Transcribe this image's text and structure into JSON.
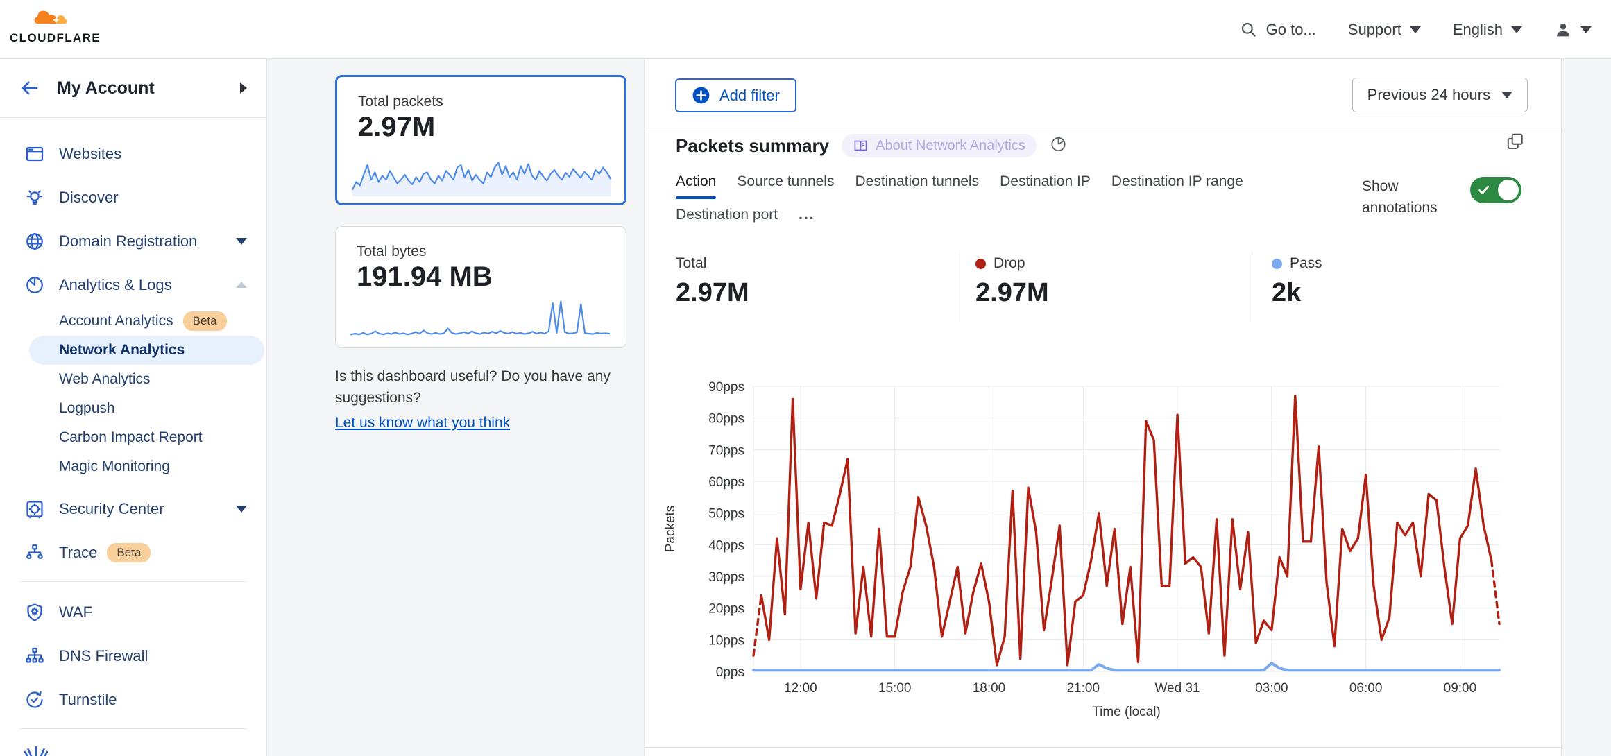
{
  "header": {
    "logo_text": "CLOUDFLARE",
    "goto_label": "Go to...",
    "support_label": "Support",
    "language_label": "English"
  },
  "sidebar": {
    "account_label": "My Account",
    "beta_label": "Beta",
    "items": [
      {
        "label": "Websites"
      },
      {
        "label": "Discover"
      },
      {
        "label": "Domain Registration"
      },
      {
        "label": "Analytics & Logs"
      },
      {
        "label": "Account Analytics"
      },
      {
        "label": "Network Analytics"
      },
      {
        "label": "Web Analytics"
      },
      {
        "label": "Logpush"
      },
      {
        "label": "Carbon Impact Report"
      },
      {
        "label": "Magic Monitoring"
      },
      {
        "label": "Security Center"
      },
      {
        "label": "Trace"
      },
      {
        "label": "WAF"
      },
      {
        "label": "DNS Firewall"
      },
      {
        "label": "Turnstile"
      }
    ]
  },
  "overview": {
    "packets_card": {
      "title": "Total packets",
      "value": "2.97M",
      "sparkline": [
        10,
        25,
        18,
        40,
        60,
        30,
        45,
        25,
        38,
        30,
        48,
        35,
        22,
        30,
        40,
        28,
        20,
        35,
        25,
        42,
        45,
        30,
        22,
        38,
        28,
        48,
        40,
        30,
        55,
        60,
        35,
        50,
        28,
        40,
        30,
        22,
        45,
        35,
        55,
        65,
        40,
        58,
        35,
        45,
        30,
        58,
        42,
        62,
        38,
        30,
        48,
        36,
        28,
        42,
        50,
        38,
        30,
        44,
        36,
        52,
        42,
        34,
        46,
        38,
        30,
        50,
        42,
        55,
        45,
        32
      ]
    },
    "bytes_card": {
      "title": "Total bytes",
      "value": "191.94 MB",
      "sparkline": [
        10,
        12,
        10,
        14,
        10,
        12,
        18,
        12,
        10,
        13,
        11,
        15,
        11,
        13,
        10,
        12,
        16,
        12,
        20,
        13,
        11,
        14,
        11,
        13,
        25,
        14,
        11,
        13,
        16,
        12,
        18,
        13,
        11,
        15,
        12,
        17,
        13,
        19,
        14,
        12,
        16,
        12,
        14,
        11,
        13,
        17,
        12,
        15,
        12,
        18,
        88,
        14,
        92,
        16,
        12,
        13,
        15,
        85,
        13,
        12,
        11,
        14,
        12,
        13,
        12
      ]
    },
    "feedback_question": "Is this dashboard useful? Do you have any suggestions?",
    "feedback_link": "Let us know what you think"
  },
  "main": {
    "add_filter_label": "Add filter",
    "time_range_label": "Previous 24 hours",
    "summary": {
      "title": "Packets summary",
      "about_badge": "About Network Analytics",
      "tabs": [
        "Action",
        "Source tunnels",
        "Destination tunnels",
        "Destination IP",
        "Destination IP range",
        "Destination port"
      ],
      "more_tabs_label": "...",
      "active_tab": "Action",
      "show_annotations_label": "Show annotations",
      "annotations_enabled": true,
      "stats": [
        {
          "label": "Total",
          "value": "2.97M",
          "dot_color": ""
        },
        {
          "label": "Drop",
          "value": "2.97M",
          "dot_color": "#b32014"
        },
        {
          "label": "Pass",
          "value": "2k",
          "dot_color": "#7aa9ee"
        }
      ]
    }
  },
  "colors": {
    "accent_blue": "#0051c3",
    "drop_red": "#b02114",
    "pass_blue": "#7aa9ee",
    "toggle_green": "#2c8a43",
    "selected_card_border": "#2f6fd8",
    "sparkline_blue": "#4f8ce8"
  },
  "chart_data": {
    "type": "line",
    "title": "Packets summary",
    "ylabel": "Packets",
    "xlabel": "Time (local)",
    "units": "pps",
    "ylim": [
      0,
      90
    ],
    "grid": true,
    "legend_position": "none",
    "yticks": [
      "0pps",
      "10pps",
      "20pps",
      "30pps",
      "40pps",
      "50pps",
      "60pps",
      "70pps",
      "80pps",
      "90pps"
    ],
    "x_tick_labels": [
      "12:00",
      "15:00",
      "18:00",
      "21:00",
      "Wed 31",
      "03:00",
      "06:00",
      "09:00"
    ],
    "x_tick_indices": [
      6,
      18,
      30,
      42,
      54,
      66,
      78,
      90
    ],
    "start_time": "10:30",
    "interval_minutes": 15,
    "series": [
      {
        "name": "Drop",
        "color": "#b02114",
        "dashed_ends": true,
        "values": [
          5,
          24,
          10,
          42,
          18,
          86,
          26,
          47,
          23,
          47,
          46,
          56,
          67,
          12,
          33,
          11,
          45,
          11,
          11,
          25,
          33,
          55,
          46,
          33,
          11,
          22,
          33,
          12,
          25,
          34,
          22,
          2,
          11,
          57,
          4,
          58,
          44,
          13,
          29,
          46,
          2,
          22,
          24,
          35,
          50,
          27,
          45,
          15,
          33,
          3,
          79,
          73,
          27,
          27,
          81,
          34,
          36,
          33,
          12,
          48,
          5,
          48,
          26,
          44,
          9,
          16,
          13,
          36,
          30,
          87,
          41,
          41,
          71,
          28,
          8,
          45,
          38,
          42,
          62,
          27,
          10,
          17,
          47,
          43,
          47,
          30,
          56,
          54,
          33,
          15,
          42,
          46,
          64,
          46,
          35,
          15
        ]
      },
      {
        "name": "Pass",
        "color": "#7aa9ee",
        "dashed_ends": false,
        "values": [
          0.4,
          0.4,
          0.4,
          0.4,
          0.4,
          0.4,
          0.4,
          0.4,
          0.4,
          0.4,
          0.4,
          0.4,
          0.4,
          0.4,
          0.4,
          0.4,
          0.4,
          0.4,
          0.4,
          0.4,
          0.4,
          0.4,
          0.4,
          0.4,
          0.4,
          0.4,
          0.4,
          0.4,
          0.4,
          0.4,
          0.4,
          0.4,
          0.4,
          0.4,
          0.4,
          0.4,
          0.4,
          0.4,
          0.4,
          0.4,
          0.4,
          0.4,
          0.4,
          0.4,
          2.2,
          1.0,
          0.4,
          0.4,
          0.4,
          0.4,
          0.4,
          0.4,
          0.4,
          0.4,
          0.4,
          0.4,
          0.4,
          0.4,
          0.4,
          0.4,
          0.4,
          0.4,
          0.4,
          0.4,
          0.4,
          0.4,
          2.6,
          1.0,
          0.4,
          0.4,
          0.4,
          0.4,
          0.4,
          0.4,
          0.4,
          0.4,
          0.4,
          0.4,
          0.4,
          0.4,
          0.4,
          0.4,
          0.4,
          0.4,
          0.4,
          0.4,
          0.4,
          0.4,
          0.4,
          0.4,
          0.4,
          0.4,
          0.4,
          0.4,
          0.4,
          0.4
        ]
      }
    ]
  }
}
